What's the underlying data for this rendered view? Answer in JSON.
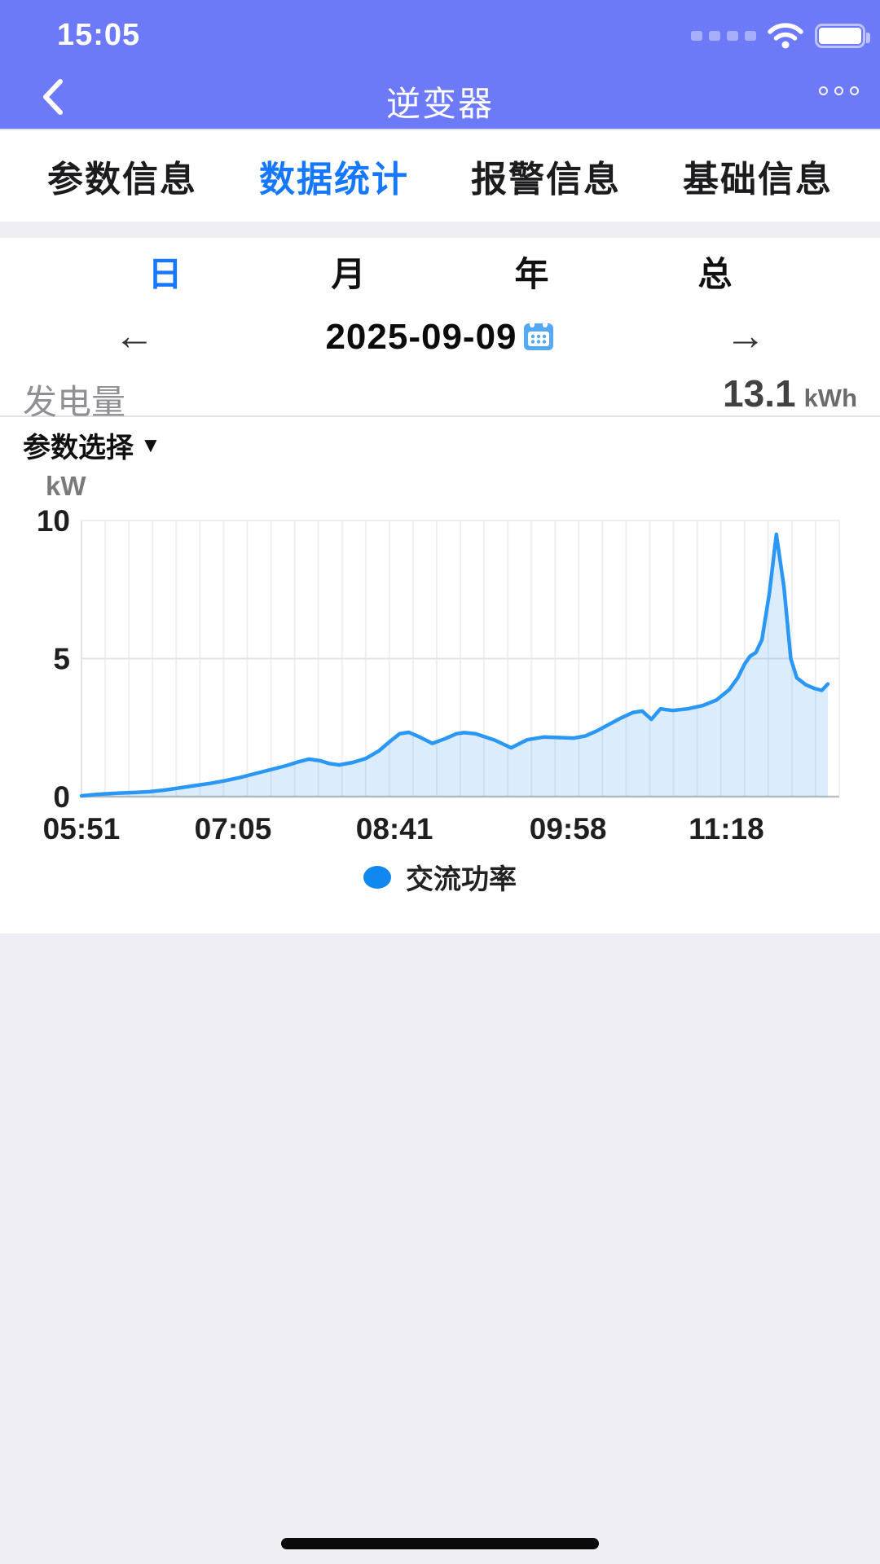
{
  "status_bar": {
    "time": "15:05"
  },
  "nav_bar": {
    "title": "逆变器"
  },
  "tabs": {
    "items": [
      {
        "label": "参数信息",
        "active": false
      },
      {
        "label": "数据统计",
        "active": true
      },
      {
        "label": "报警信息",
        "active": false
      },
      {
        "label": "基础信息",
        "active": false
      }
    ]
  },
  "period_selector": {
    "items": [
      {
        "label": "日",
        "active": true
      },
      {
        "label": "月",
        "active": false
      },
      {
        "label": "年",
        "active": false
      },
      {
        "label": "总",
        "active": false
      }
    ]
  },
  "date_nav": {
    "prev_arrow": "←",
    "date": "2025-09-09",
    "next_arrow": "→"
  },
  "generation": {
    "label": "发电量",
    "value": "13.1",
    "unit": "kWh"
  },
  "param_select": {
    "label": "参数选择",
    "caret": "▼"
  },
  "chart_data": {
    "type": "area",
    "ylabel": "kW",
    "ylim": [
      0,
      10
    ],
    "yticks": [
      0,
      5,
      10
    ],
    "xticks": [
      {
        "label": "05:51",
        "pct": 0.0
      },
      {
        "label": "07:05",
        "pct": 0.2
      },
      {
        "label": "08:41",
        "pct": 0.413
      },
      {
        "label": "09:58",
        "pct": 0.642
      },
      {
        "label": "11:18",
        "pct": 0.851
      }
    ],
    "grid": {
      "v_cells": 32,
      "h_lines": true
    },
    "legend_position": "bottom",
    "series": [
      {
        "name": "交流功率",
        "color": "#2B97F5",
        "fill": "rgba(43,151,245,0.17)",
        "legend_color": "#1187F0",
        "points": [
          [
            0.0,
            0.03
          ],
          [
            0.015,
            0.07
          ],
          [
            0.03,
            0.1
          ],
          [
            0.05,
            0.13
          ],
          [
            0.07,
            0.15
          ],
          [
            0.09,
            0.18
          ],
          [
            0.11,
            0.24
          ],
          [
            0.13,
            0.32
          ],
          [
            0.15,
            0.4
          ],
          [
            0.17,
            0.48
          ],
          [
            0.19,
            0.58
          ],
          [
            0.21,
            0.7
          ],
          [
            0.23,
            0.84
          ],
          [
            0.25,
            0.98
          ],
          [
            0.27,
            1.12
          ],
          [
            0.285,
            1.25
          ],
          [
            0.3,
            1.36
          ],
          [
            0.315,
            1.3
          ],
          [
            0.327,
            1.2
          ],
          [
            0.34,
            1.15
          ],
          [
            0.358,
            1.24
          ],
          [
            0.375,
            1.38
          ],
          [
            0.392,
            1.65
          ],
          [
            0.408,
            2.02
          ],
          [
            0.42,
            2.28
          ],
          [
            0.432,
            2.33
          ],
          [
            0.447,
            2.15
          ],
          [
            0.463,
            1.93
          ],
          [
            0.48,
            2.1
          ],
          [
            0.495,
            2.28
          ],
          [
            0.505,
            2.32
          ],
          [
            0.52,
            2.28
          ],
          [
            0.545,
            2.05
          ],
          [
            0.567,
            1.77
          ],
          [
            0.588,
            2.06
          ],
          [
            0.61,
            2.16
          ],
          [
            0.632,
            2.14
          ],
          [
            0.65,
            2.12
          ],
          [
            0.665,
            2.2
          ],
          [
            0.68,
            2.38
          ],
          [
            0.695,
            2.6
          ],
          [
            0.712,
            2.85
          ],
          [
            0.728,
            3.05
          ],
          [
            0.74,
            3.1
          ],
          [
            0.752,
            2.8
          ],
          [
            0.764,
            3.18
          ],
          [
            0.78,
            3.12
          ],
          [
            0.8,
            3.18
          ],
          [
            0.82,
            3.3
          ],
          [
            0.838,
            3.5
          ],
          [
            0.855,
            3.88
          ],
          [
            0.866,
            4.3
          ],
          [
            0.875,
            4.8
          ],
          [
            0.882,
            5.08
          ],
          [
            0.89,
            5.22
          ],
          [
            0.898,
            5.68
          ],
          [
            0.908,
            7.4
          ],
          [
            0.917,
            9.5
          ],
          [
            0.927,
            7.6
          ],
          [
            0.936,
            5.0
          ],
          [
            0.944,
            4.3
          ],
          [
            0.956,
            4.05
          ],
          [
            0.967,
            3.92
          ],
          [
            0.977,
            3.85
          ],
          [
            0.985,
            4.08
          ]
        ]
      }
    ]
  },
  "colors": {
    "header": "#6D7AF8",
    "accent_blue": "#1677FF"
  }
}
